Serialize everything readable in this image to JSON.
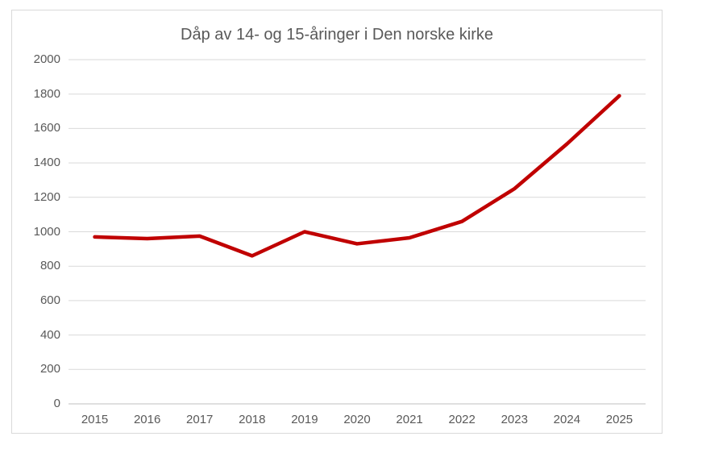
{
  "chart_data": {
    "type": "line",
    "title": "Dåp av 14- og 15-åringer i Den norske kirke",
    "categories": [
      "2015",
      "2016",
      "2017",
      "2018",
      "2019",
      "2020",
      "2021",
      "2022",
      "2023",
      "2024",
      "2025"
    ],
    "values": [
      970,
      960,
      975,
      860,
      1000,
      930,
      965,
      1060,
      1250,
      1510,
      1790
    ],
    "xlabel": "",
    "ylabel": "",
    "ylim": [
      0,
      2000
    ],
    "yticks": [
      0,
      200,
      400,
      600,
      800,
      1000,
      1200,
      1400,
      1600,
      1800,
      2000
    ],
    "grid": "horizontal",
    "legend": "none",
    "line_color": "#c00000",
    "gridline_color": "#d9d9d9",
    "axis_line_color": "#bfbfbf",
    "text_color": "#595959",
    "frame_border_color": "#d9d9d9",
    "background_color": "#ffffff"
  }
}
